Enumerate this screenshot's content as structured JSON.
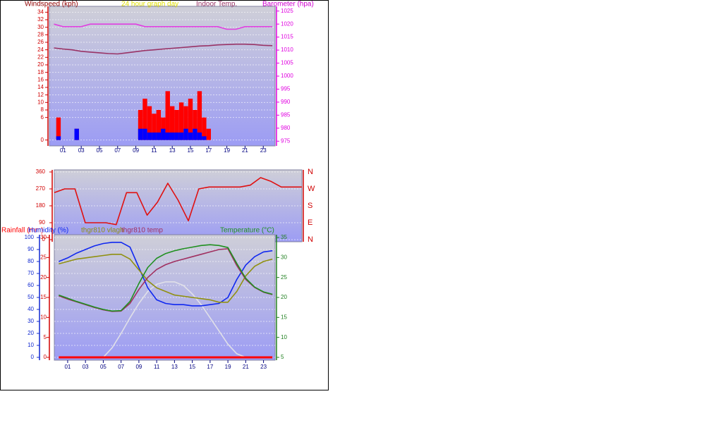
{
  "chart_data": [
    {
      "type": "bar",
      "title": "24 hour graph day",
      "ylabel": "Windspeed (kph)",
      "y2label": "Barometer (hpa)",
      "grid": true,
      "x": [
        0,
        0.5,
        1,
        1.5,
        2,
        2.5,
        3,
        3.5,
        4,
        4.5,
        5,
        5.5,
        6,
        6.5,
        7,
        7.5,
        8,
        8.5,
        9,
        9.5,
        10,
        10.5,
        11,
        11.5,
        12,
        12.5,
        13,
        13.5,
        14,
        14.5,
        15,
        15.5,
        16,
        16.5,
        17,
        17.5,
        18,
        18.5,
        19,
        19.5,
        20,
        20.5,
        21,
        21.5,
        22,
        22.5,
        23,
        23.5,
        24
      ],
      "xlim": [
        -0.5,
        24.3
      ],
      "xticks": [
        {
          "value": 1,
          "label": "01"
        },
        {
          "value": 3,
          "label": "03"
        },
        {
          "value": 5,
          "label": "05"
        },
        {
          "value": 7,
          "label": "07"
        },
        {
          "value": 9,
          "label": "09"
        },
        {
          "value": 11,
          "label": "11"
        },
        {
          "value": 13,
          "label": "13"
        },
        {
          "value": 15,
          "label": "15"
        },
        {
          "value": 17,
          "label": "17"
        },
        {
          "value": 19,
          "label": "19"
        },
        {
          "value": 21,
          "label": "21"
        },
        {
          "value": 23,
          "label": "23"
        }
      ],
      "ylim": [
        -1,
        35
      ],
      "yticks": [
        0,
        6,
        8,
        10,
        12,
        14,
        16,
        18,
        20,
        22,
        24,
        26,
        28,
        30,
        32,
        34
      ],
      "y2lim": [
        974,
        1026
      ],
      "y2ticks": [
        975,
        980,
        985,
        990,
        995,
        1000,
        1005,
        1010,
        1015,
        1020,
        1025
      ],
      "series": [
        {
          "color": "#ff0000",
          "values": [
            0,
            6,
            0,
            0,
            0,
            3,
            0,
            0,
            0,
            0,
            0,
            0,
            0,
            0,
            0,
            0,
            0,
            0,
            0,
            8,
            11,
            9,
            7,
            8,
            6,
            13,
            9,
            8,
            10,
            9,
            11,
            8,
            13,
            6,
            3,
            0,
            0,
            0,
            0,
            0,
            0,
            0,
            0,
            0,
            0,
            0,
            0,
            0,
            0
          ]
        },
        {
          "color": "#0000ff",
          "values": [
            0,
            1,
            0,
            0,
            0,
            3,
            0,
            0,
            0,
            0,
            0,
            0,
            0,
            0,
            0,
            0,
            0,
            0,
            0,
            3,
            3,
            2,
            2,
            2,
            3,
            2,
            2,
            2,
            2,
            3,
            2,
            3,
            2,
            1,
            0,
            0,
            0,
            0,
            0,
            0,
            0,
            0,
            0,
            0,
            0,
            0,
            0,
            0,
            0
          ]
        },
        {
          "type": "line",
          "axis": "y2",
          "color": "#e040e0",
          "x": [
            0,
            1,
            2,
            3,
            4,
            5,
            6,
            7,
            8,
            9,
            10,
            11,
            12,
            13,
            14,
            15,
            16,
            17,
            18,
            19,
            20,
            21,
            22,
            23,
            24
          ],
          "values": [
            1020,
            1019,
            1019,
            1019,
            1020,
            1020,
            1020,
            1020,
            1020,
            1020,
            1019,
            1019,
            1019,
            1019,
            1019,
            1019,
            1019,
            1019,
            1019,
            1018,
            1018,
            1019,
            1019,
            1019,
            1019
          ]
        },
        {
          "type": "line",
          "name": "Indoor Temp.",
          "color": "#993366",
          "x": [
            0,
            1,
            2,
            3,
            4,
            5,
            6,
            7,
            8,
            9,
            10,
            11,
            12,
            13,
            14,
            15,
            16,
            17,
            18,
            19,
            20,
            21,
            22,
            23,
            24
          ],
          "values": [
            24.5,
            24.2,
            24.0,
            23.6,
            23.4,
            23.2,
            23.0,
            22.9,
            23.2,
            23.5,
            23.8,
            24.0,
            24.2,
            24.4,
            24.6,
            24.8,
            25.0,
            25.1,
            25.3,
            25.4,
            25.5,
            25.5,
            25.4,
            25.2,
            25.1
          ]
        }
      ]
    },
    {
      "type": "line",
      "grid": true,
      "x": [
        0,
        1,
        2,
        3,
        4,
        5,
        6,
        7,
        8,
        9,
        10,
        11,
        12,
        13,
        14,
        15,
        16,
        17,
        18,
        19,
        20,
        21,
        22,
        23,
        24
      ],
      "xlim": [
        0,
        24
      ],
      "ylim": [
        0,
        360
      ],
      "yticks": [
        0,
        90,
        180,
        270,
        360
      ],
      "y2lim": [
        0,
        360
      ],
      "y2ticks": [
        {
          "value": 360,
          "label": "N"
        },
        {
          "value": 270,
          "label": "W"
        },
        {
          "value": 180,
          "label": "S"
        },
        {
          "value": 90,
          "label": "E"
        },
        {
          "value": 0,
          "label": "N"
        }
      ],
      "series": [
        {
          "color": "#e01010",
          "values": [
            250,
            270,
            270,
            90,
            90,
            90,
            80,
            250,
            250,
            130,
            200,
            300,
            210,
            100,
            270,
            280,
            280,
            280,
            280,
            290,
            330,
            310,
            280,
            280,
            280
          ]
        }
      ]
    },
    {
      "type": "line",
      "grid": true,
      "x": [
        0,
        1,
        2,
        3,
        4,
        5,
        6,
        7,
        8,
        9,
        10,
        11,
        12,
        13,
        14,
        15,
        16,
        17,
        18,
        19,
        20,
        21,
        22,
        23,
        24
      ],
      "xlim": [
        -0.5,
        24.3
      ],
      "xticks": [
        {
          "value": 1,
          "label": "01"
        },
        {
          "value": 3,
          "label": "03"
        },
        {
          "value": 5,
          "label": "05"
        },
        {
          "value": 7,
          "label": "07"
        },
        {
          "value": 9,
          "label": "09"
        },
        {
          "value": 11,
          "label": "11"
        },
        {
          "value": 13,
          "label": "13"
        },
        {
          "value": 15,
          "label": "15"
        },
        {
          "value": 17,
          "label": "17"
        },
        {
          "value": 19,
          "label": "19"
        },
        {
          "value": 21,
          "label": "21"
        },
        {
          "value": 23,
          "label": "23"
        }
      ],
      "ylim": [
        0,
        30
      ],
      "yticks": [
        0,
        5,
        10,
        15,
        20,
        25,
        30
      ],
      "y3lim": [
        0,
        100
      ],
      "y3ticks": [
        0,
        10,
        20,
        30,
        40,
        50,
        60,
        70,
        80,
        90,
        100
      ],
      "y2lim": [
        5,
        35
      ],
      "y2ticks": [
        5,
        10,
        15,
        20,
        25,
        30,
        35
      ],
      "series": [
        {
          "axis": "y3",
          "color": "#e0e0e8",
          "values": [
            0,
            0,
            0,
            0,
            0,
            0,
            8,
            20,
            33,
            45,
            55,
            61,
            63,
            63,
            60,
            53,
            44,
            33,
            22,
            11,
            3,
            0,
            0,
            0,
            0
          ]
        },
        {
          "name": "Rainfall (mm)",
          "color": "#ff0000",
          "values": [
            0,
            0,
            0,
            0,
            0,
            0,
            0,
            0,
            0,
            0,
            0,
            0,
            0,
            0,
            0,
            0,
            0,
            0,
            0,
            0,
            0,
            0,
            0,
            0,
            0
          ]
        },
        {
          "name": "Humidity (%)",
          "axis": "y3",
          "color": "#1028f0",
          "values": [
            80,
            83,
            87,
            90,
            93,
            95,
            96,
            96,
            92,
            75,
            58,
            48,
            45,
            44,
            44,
            43,
            43,
            44,
            45,
            50,
            65,
            77,
            84,
            88,
            89
          ]
        },
        {
          "name": "thgr810 vlagh",
          "axis": "y3",
          "color": "#909010",
          "values": [
            78,
            80,
            82,
            83,
            84,
            85,
            86,
            86,
            82,
            73,
            64,
            58,
            55,
            52,
            51,
            50,
            49,
            48,
            46,
            46,
            55,
            68,
            76,
            80,
            82
          ]
        },
        {
          "name": "thgr810 temp",
          "axis": "y2",
          "color": "#a03060",
          "values": [
            20.4,
            19.6,
            18.9,
            18.2,
            17.5,
            16.9,
            16.5,
            16.6,
            18.5,
            22,
            25,
            27,
            28.2,
            29,
            29.6,
            30.2,
            30.8,
            31.4,
            32,
            32.2,
            28,
            24.5,
            22.5,
            21.3,
            20.7
          ]
        },
        {
          "name": "Temperature (°C)",
          "axis": "y2",
          "color": "#209020",
          "values": [
            20.6,
            19.8,
            19,
            18.3,
            17.6,
            17,
            16.6,
            16.7,
            19,
            23.5,
            27.5,
            29.8,
            31,
            31.7,
            32.2,
            32.6,
            33,
            33.2,
            33,
            32.5,
            28.5,
            24.8,
            22.6,
            21.4,
            20.8
          ]
        }
      ]
    }
  ]
}
